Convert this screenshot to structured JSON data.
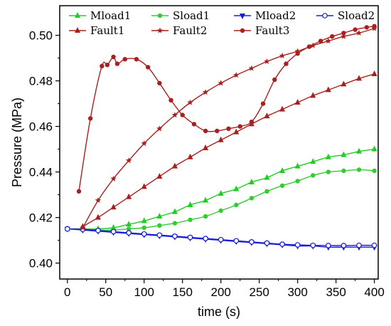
{
  "chart_data": {
    "type": "line",
    "xlabel": "time (s)",
    "ylabel": "Pressure (MPa)",
    "xlim": [
      -10,
      405
    ],
    "ylim": [
      0.393,
      0.513
    ],
    "xticks": [
      0,
      50,
      100,
      150,
      200,
      250,
      300,
      350,
      400
    ],
    "yticks": [
      0.4,
      0.42,
      0.44,
      0.46,
      0.48,
      0.5
    ],
    "xtick_labels": [
      "0",
      "50",
      "100",
      "150",
      "200",
      "250",
      "300",
      "350",
      "400"
    ],
    "ytick_labels": [
      "0.40",
      "0.42",
      "0.44",
      "0.46",
      "0.48",
      "0.50"
    ],
    "grid": false,
    "legend_position": "top",
    "series": [
      {
        "name": "Mload1",
        "color": "#22cc22",
        "marker": "triangle-up",
        "x": [
          0,
          20,
          40,
          60,
          80,
          100,
          120,
          140,
          160,
          180,
          200,
          220,
          240,
          260,
          280,
          300,
          320,
          340,
          360,
          380,
          400
        ],
        "y": [
          0.415,
          0.415,
          0.415,
          0.4155,
          0.417,
          0.4185,
          0.4205,
          0.4225,
          0.4255,
          0.4275,
          0.4305,
          0.4325,
          0.4355,
          0.4375,
          0.4405,
          0.4425,
          0.4445,
          0.4465,
          0.4475,
          0.449,
          0.45
        ]
      },
      {
        "name": "Sload1",
        "color": "#33cc33",
        "marker": "circle-filled",
        "x": [
          0,
          20,
          40,
          60,
          80,
          100,
          120,
          140,
          160,
          180,
          200,
          220,
          240,
          260,
          280,
          300,
          320,
          340,
          360,
          380,
          400
        ],
        "y": [
          0.415,
          0.415,
          0.4145,
          0.4145,
          0.415,
          0.4155,
          0.4165,
          0.4175,
          0.419,
          0.4205,
          0.423,
          0.4255,
          0.4285,
          0.4315,
          0.434,
          0.436,
          0.4385,
          0.44,
          0.4405,
          0.441,
          0.4405
        ]
      },
      {
        "name": "Mload2",
        "color": "#1a1adc",
        "marker": "triangle-down",
        "x": [
          0,
          20,
          40,
          60,
          80,
          100,
          120,
          140,
          160,
          180,
          200,
          220,
          240,
          260,
          280,
          300,
          320,
          340,
          360,
          380,
          400
        ],
        "y": [
          0.415,
          0.4145,
          0.414,
          0.4135,
          0.413,
          0.4125,
          0.412,
          0.4115,
          0.411,
          0.4105,
          0.41,
          0.4095,
          0.409,
          0.4085,
          0.408,
          0.4075,
          0.4075,
          0.407,
          0.407,
          0.407,
          0.407
        ]
      },
      {
        "name": "Sload2",
        "color": "#1a1adc",
        "marker": "circle-open",
        "x": [
          0,
          20,
          40,
          60,
          80,
          100,
          120,
          140,
          160,
          180,
          200,
          220,
          240,
          260,
          280,
          300,
          320,
          340,
          360,
          380,
          400
        ],
        "y": [
          0.415,
          0.4148,
          0.4143,
          0.4138,
          0.4133,
          0.4128,
          0.4123,
          0.4118,
          0.4113,
          0.4108,
          0.4103,
          0.4098,
          0.4093,
          0.4088,
          0.4083,
          0.408,
          0.4078,
          0.4077,
          0.4077,
          0.4078,
          0.4078
        ]
      },
      {
        "name": "Fault1",
        "color": "#a82020",
        "marker": "triangle-up",
        "x": [
          20,
          40,
          60,
          80,
          100,
          120,
          140,
          160,
          180,
          200,
          220,
          240,
          260,
          280,
          300,
          320,
          340,
          360,
          380,
          400
        ],
        "y": [
          0.416,
          0.42,
          0.4245,
          0.429,
          0.4335,
          0.438,
          0.4425,
          0.4465,
          0.4505,
          0.454,
          0.4575,
          0.461,
          0.4645,
          0.4675,
          0.4705,
          0.4735,
          0.476,
          0.4785,
          0.481,
          0.483
        ]
      },
      {
        "name": "Fault2",
        "color": "#a82020",
        "marker": "star",
        "x": [
          20,
          40,
          60,
          80,
          100,
          120,
          140,
          160,
          180,
          200,
          220,
          240,
          260,
          280,
          300,
          320,
          340,
          360,
          380,
          400
        ],
        "y": [
          0.4155,
          0.4275,
          0.437,
          0.445,
          0.4525,
          0.459,
          0.465,
          0.4705,
          0.475,
          0.479,
          0.4825,
          0.4855,
          0.4885,
          0.491,
          0.493,
          0.4955,
          0.4975,
          0.4995,
          0.501,
          0.503
        ]
      },
      {
        "name": "Fault3",
        "color": "#a82020",
        "marker": "circle-filled",
        "x": [
          15,
          30,
          45,
          52,
          60,
          65,
          75,
          90,
          105,
          120,
          135,
          150,
          165,
          180,
          195,
          210,
          225,
          240,
          255,
          270,
          285,
          300,
          315,
          330,
          345,
          360,
          375,
          390,
          400
        ],
        "y": [
          0.4315,
          0.4635,
          0.4865,
          0.487,
          0.4905,
          0.4875,
          0.4895,
          0.4895,
          0.486,
          0.479,
          0.4715,
          0.465,
          0.461,
          0.458,
          0.458,
          0.459,
          0.46,
          0.462,
          0.47,
          0.4805,
          0.4875,
          0.492,
          0.495,
          0.4975,
          0.4995,
          0.501,
          0.5025,
          0.5035,
          0.504
        ]
      }
    ]
  }
}
